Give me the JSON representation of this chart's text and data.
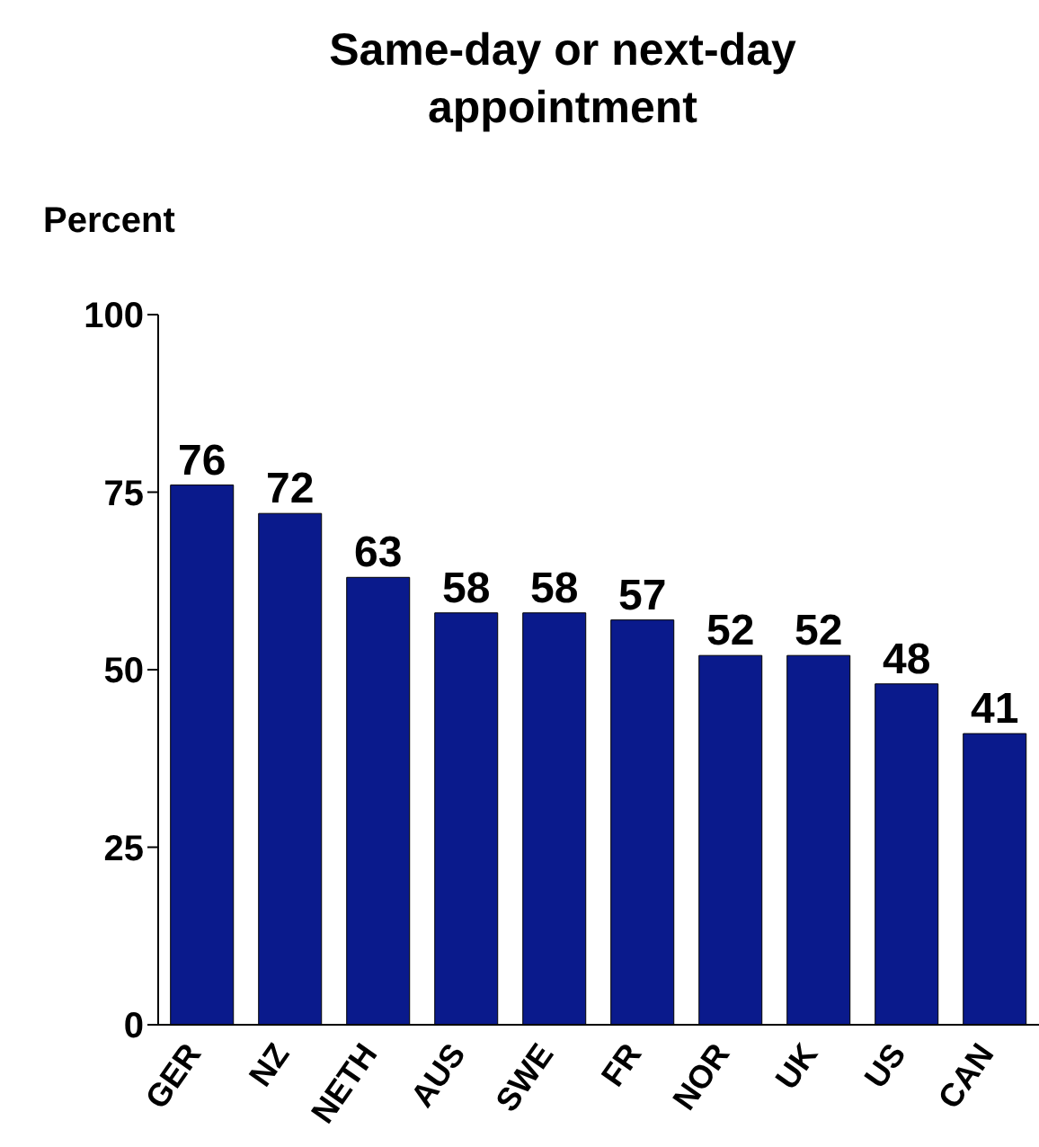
{
  "chart_data": {
    "type": "bar",
    "title": "Same-day or next-day appointment",
    "ylabel": "Percent",
    "categories": [
      "GER",
      "NZ",
      "NETH",
      "AUS",
      "SWE",
      "FR",
      "NOR",
      "UK",
      "US",
      "CAN"
    ],
    "values": [
      76,
      72,
      63,
      58,
      58,
      57,
      52,
      52,
      48,
      41
    ],
    "color": "#0a1a8c",
    "ylim": [
      0,
      100
    ],
    "yticks": [
      0,
      25,
      50,
      75,
      100
    ],
    "grid": false,
    "data_labels": true
  }
}
